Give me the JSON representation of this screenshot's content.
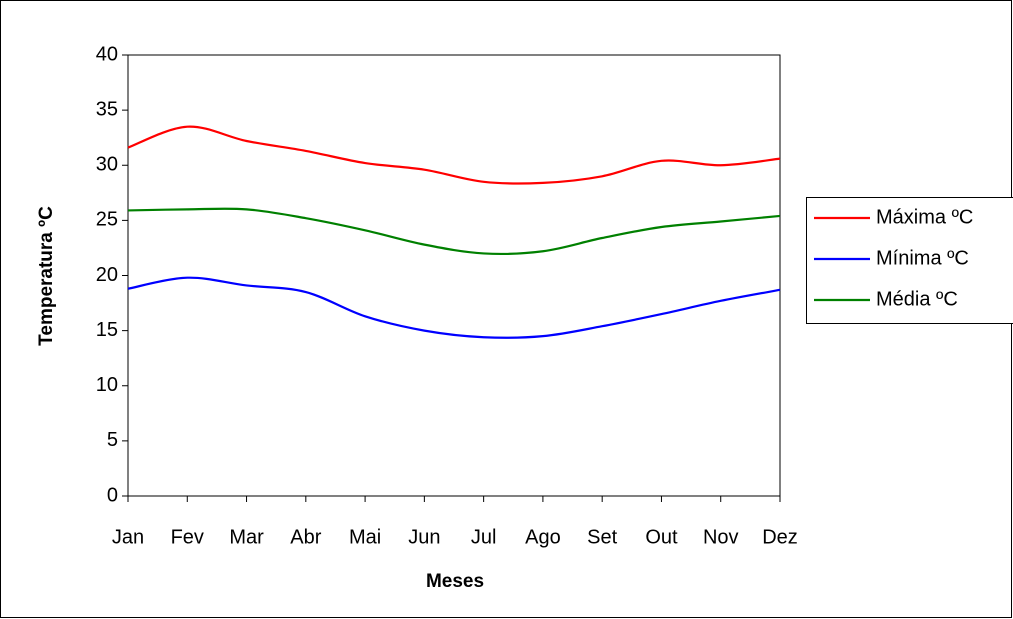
{
  "chart_data": {
    "type": "line",
    "x_label": "Meses",
    "y_label": "Temperatura ºC",
    "categories": [
      "Jan",
      "Fev",
      "Mar",
      "Abr",
      "Mai",
      "Jun",
      "Jul",
      "Ago",
      "Set",
      "Out",
      "Nov",
      "Dez"
    ],
    "series": [
      {
        "name": "Máxima ºC",
        "color": "#ff0000",
        "values": [
          31.6,
          33.5,
          32.2,
          31.3,
          30.2,
          29.6,
          28.5,
          28.4,
          29.0,
          30.4,
          30.0,
          30.6
        ]
      },
      {
        "name": "Mínima ºC",
        "color": "#0000ff",
        "values": [
          18.8,
          19.8,
          19.1,
          18.5,
          16.3,
          15.0,
          14.4,
          14.5,
          15.4,
          16.5,
          17.7,
          18.7
        ]
      },
      {
        "name": "Média ºC",
        "color": "#008000",
        "values": [
          25.9,
          26.0,
          26.0,
          25.2,
          24.1,
          22.8,
          22.0,
          22.2,
          23.4,
          24.4,
          24.9,
          25.4
        ]
      }
    ],
    "ylim": [
      0,
      40
    ],
    "yticks": [
      0,
      5,
      10,
      15,
      20,
      25,
      30,
      35,
      40
    ],
    "smooth": true,
    "grid": false,
    "legend": "right"
  }
}
